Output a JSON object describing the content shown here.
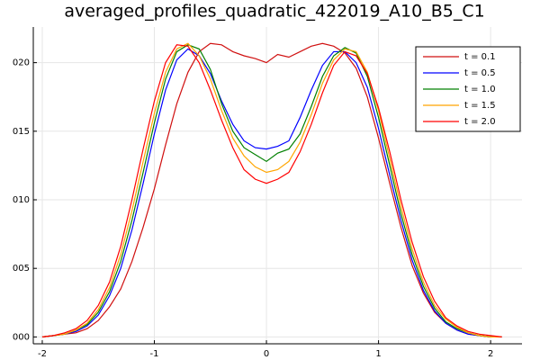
{
  "chart_data": {
    "type": "line",
    "title": "averaged_profiles_quadratic_422019_A10_B5_C1",
    "x": [
      -2.0,
      -1.9,
      -1.8,
      -1.7,
      -1.6,
      -1.5,
      -1.4,
      -1.3,
      -1.2,
      -1.1,
      -1.0,
      -0.9,
      -0.8,
      -0.7,
      -0.6,
      -0.5,
      -0.4,
      -0.3,
      -0.2,
      -0.1,
      0.0,
      0.1,
      0.2,
      0.3,
      0.4,
      0.5,
      0.6,
      0.7,
      0.8,
      0.9,
      1.0,
      1.1,
      1.2,
      1.3,
      1.4,
      1.5,
      1.6,
      1.7,
      1.8,
      1.9,
      2.0,
      2.1
    ],
    "series": [
      {
        "name": "t = 0.1",
        "color": "#d01010",
        "values": [
          0.0,
          0.0001,
          0.0002,
          0.0003,
          0.0006,
          0.0012,
          0.0022,
          0.0035,
          0.0055,
          0.008,
          0.0108,
          0.014,
          0.017,
          0.0193,
          0.0208,
          0.0214,
          0.0213,
          0.0208,
          0.0205,
          0.0203,
          0.02,
          0.0206,
          0.0204,
          0.0208,
          0.0212,
          0.0214,
          0.0212,
          0.0207,
          0.0196,
          0.0175,
          0.0145,
          0.0112,
          0.008,
          0.0052,
          0.0032,
          0.0018,
          0.001,
          0.0005,
          0.0002,
          0.0001,
          0.0,
          0.0
        ]
      },
      {
        "name": "t = 0.5",
        "color": "#0000ff",
        "values": [
          0.0,
          0.0001,
          0.0002,
          0.0004,
          0.0008,
          0.0016,
          0.003,
          0.005,
          0.0078,
          0.0112,
          0.0148,
          0.018,
          0.0202,
          0.021,
          0.0205,
          0.0192,
          0.0172,
          0.0155,
          0.0143,
          0.0138,
          0.0137,
          0.0139,
          0.0143,
          0.016,
          0.018,
          0.0198,
          0.0208,
          0.0208,
          0.02,
          0.0182,
          0.0152,
          0.0118,
          0.0085,
          0.0056,
          0.0034,
          0.0019,
          0.001,
          0.0005,
          0.0002,
          0.0001,
          0.0,
          0.0
        ]
      },
      {
        "name": "t = 1.0",
        "color": "#008000",
        "values": [
          0.0,
          0.0001,
          0.0002,
          0.0005,
          0.0009,
          0.0018,
          0.0033,
          0.0055,
          0.0085,
          0.012,
          0.0156,
          0.0188,
          0.0208,
          0.0213,
          0.021,
          0.0195,
          0.017,
          0.015,
          0.0138,
          0.0133,
          0.0128,
          0.0134,
          0.0137,
          0.0148,
          0.0168,
          0.019,
          0.0205,
          0.0211,
          0.0207,
          0.019,
          0.016,
          0.0125,
          0.009,
          0.006,
          0.0037,
          0.0021,
          0.0011,
          0.0006,
          0.0003,
          0.0001,
          0.0,
          0.0
        ]
      },
      {
        "name": "t = 1.5",
        "color": "#ffa500",
        "values": [
          0.0,
          0.0001,
          0.0002,
          0.0005,
          0.001,
          0.002,
          0.0036,
          0.006,
          0.0092,
          0.0128,
          0.0163,
          0.0193,
          0.021,
          0.0214,
          0.0205,
          0.0188,
          0.0165,
          0.0145,
          0.0132,
          0.0124,
          0.012,
          0.0122,
          0.0128,
          0.0142,
          0.0162,
          0.0185,
          0.0202,
          0.021,
          0.0208,
          0.0193,
          0.0165,
          0.013,
          0.0095,
          0.0064,
          0.004,
          0.0023,
          0.0013,
          0.0007,
          0.0003,
          0.0001,
          0.0,
          0.0
        ]
      },
      {
        "name": "t = 2.0",
        "color": "#ff0000",
        "values": [
          0.0,
          0.0001,
          0.0003,
          0.0006,
          0.0012,
          0.0023,
          0.004,
          0.0066,
          0.01,
          0.0137,
          0.0172,
          0.02,
          0.0213,
          0.0212,
          0.02,
          0.018,
          0.0158,
          0.0138,
          0.0122,
          0.0115,
          0.0112,
          0.0115,
          0.012,
          0.0135,
          0.0155,
          0.0178,
          0.0198,
          0.0208,
          0.0205,
          0.0192,
          0.0167,
          0.0135,
          0.01,
          0.0069,
          0.0044,
          0.0026,
          0.0014,
          0.0008,
          0.0004,
          0.0002,
          0.0001,
          0.0
        ]
      }
    ],
    "xlim": [
      -2.08,
      2.28
    ],
    "xticks": [
      -2,
      -1,
      0,
      1,
      2
    ],
    "ylim": [
      -0.0005,
      0.0226
    ],
    "yticks": [
      {
        "value": 0.0,
        "label": "000"
      },
      {
        "value": 0.005,
        "label": "005"
      },
      {
        "value": 0.01,
        "label": "010"
      },
      {
        "value": 0.015,
        "label": "015"
      },
      {
        "value": 0.02,
        "label": "020"
      }
    ],
    "grid": true,
    "legend": "top-right"
  }
}
